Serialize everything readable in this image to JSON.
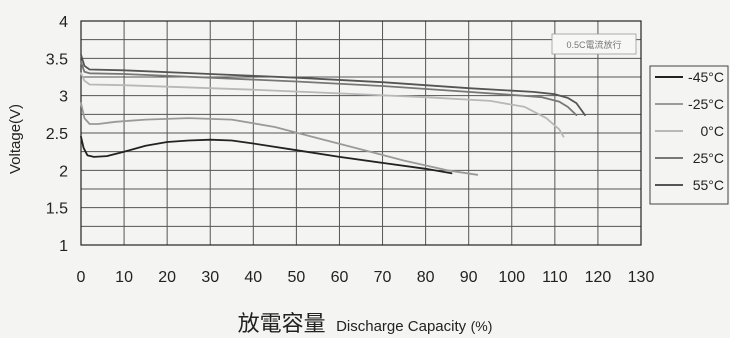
{
  "chart_data": {
    "type": "line",
    "ylabel": "Voltage(V)",
    "xlabel_cn": "放電容量",
    "xlabel_en": "Discharge Capacity",
    "xlabel_unit": "(%)",
    "annotation": "0.5C電流放行",
    "xlim": [
      0,
      130
    ],
    "ylim": [
      1,
      4
    ],
    "x_ticks": [
      "0",
      "10",
      "20",
      "30",
      "40",
      "50",
      "60",
      "70",
      "80",
      "90",
      "100",
      "110",
      "120",
      "130"
    ],
    "y_ticks": [
      "1",
      "1.5",
      "2",
      "2.5",
      "3",
      "3.5",
      "4"
    ],
    "grid": true,
    "legend_position": "right",
    "series": [
      {
        "name": "-45°C",
        "color": "#222222",
        "points": [
          [
            0,
            2.45
          ],
          [
            0.6,
            2.3
          ],
          [
            1.5,
            2.2
          ],
          [
            3,
            2.18
          ],
          [
            6,
            2.19
          ],
          [
            10,
            2.25
          ],
          [
            15,
            2.33
          ],
          [
            20,
            2.38
          ],
          [
            25,
            2.4
          ],
          [
            30,
            2.41
          ],
          [
            35,
            2.4
          ],
          [
            40,
            2.36
          ],
          [
            50,
            2.27
          ],
          [
            60,
            2.18
          ],
          [
            70,
            2.1
          ],
          [
            80,
            2.02
          ],
          [
            86,
            1.96
          ]
        ]
      },
      {
        "name": "-25°C",
        "color": "#9a9a9a",
        "points": [
          [
            0,
            2.9
          ],
          [
            0.8,
            2.7
          ],
          [
            2,
            2.62
          ],
          [
            4,
            2.62
          ],
          [
            8,
            2.65
          ],
          [
            15,
            2.68
          ],
          [
            25,
            2.7
          ],
          [
            35,
            2.68
          ],
          [
            45,
            2.58
          ],
          [
            55,
            2.43
          ],
          [
            65,
            2.28
          ],
          [
            75,
            2.13
          ],
          [
            85,
            2.0
          ],
          [
            92,
            1.94
          ]
        ]
      },
      {
        "name": "0°C",
        "color": "#b8b8b8",
        "points": [
          [
            0,
            3.3
          ],
          [
            0.8,
            3.2
          ],
          [
            2,
            3.15
          ],
          [
            10,
            3.14
          ],
          [
            20,
            3.12
          ],
          [
            40,
            3.08
          ],
          [
            60,
            3.03
          ],
          [
            80,
            2.98
          ],
          [
            95,
            2.93
          ],
          [
            103,
            2.85
          ],
          [
            108,
            2.7
          ],
          [
            111,
            2.55
          ],
          [
            112,
            2.45
          ]
        ]
      },
      {
        "name": "25°C",
        "color": "#777777",
        "points": [
          [
            0,
            3.45
          ],
          [
            0.8,
            3.32
          ],
          [
            2,
            3.3
          ],
          [
            10,
            3.29
          ],
          [
            30,
            3.24
          ],
          [
            50,
            3.19
          ],
          [
            70,
            3.13
          ],
          [
            90,
            3.05
          ],
          [
            100,
            3.01
          ],
          [
            107,
            2.98
          ],
          [
            111,
            2.92
          ],
          [
            113,
            2.85
          ],
          [
            115,
            2.74
          ]
        ]
      },
      {
        "name": "55°C",
        "color": "#555555",
        "points": [
          [
            0,
            3.55
          ],
          [
            0.8,
            3.4
          ],
          [
            2,
            3.35
          ],
          [
            10,
            3.34
          ],
          [
            30,
            3.29
          ],
          [
            50,
            3.24
          ],
          [
            70,
            3.18
          ],
          [
            90,
            3.1
          ],
          [
            105,
            3.05
          ],
          [
            110,
            3.02
          ],
          [
            113,
            2.97
          ],
          [
            115,
            2.9
          ],
          [
            117,
            2.74
          ]
        ]
      }
    ]
  }
}
